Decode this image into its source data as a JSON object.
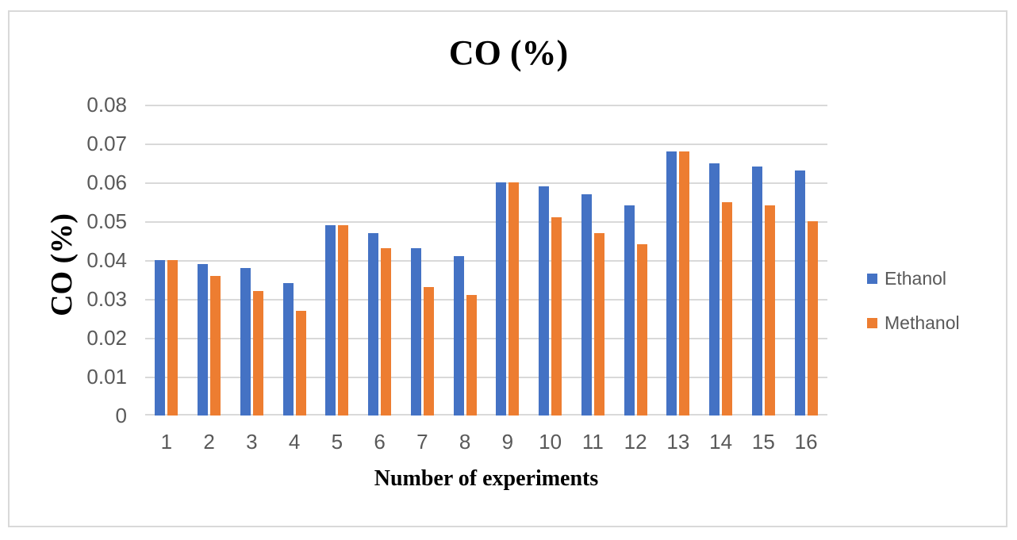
{
  "chart_data": {
    "type": "bar",
    "title": "CO (%)",
    "xlabel": "Number of experiments",
    "ylabel": "CO (%)",
    "categories": [
      "1",
      "2",
      "3",
      "4",
      "5",
      "6",
      "7",
      "8",
      "9",
      "10",
      "11",
      "12",
      "13",
      "14",
      "15",
      "16"
    ],
    "series": [
      {
        "name": "Ethanol",
        "color": "#4472C4",
        "values": [
          0.04,
          0.039,
          0.038,
          0.034,
          0.049,
          0.047,
          0.043,
          0.041,
          0.06,
          0.059,
          0.057,
          0.054,
          0.068,
          0.065,
          0.064,
          0.063
        ]
      },
      {
        "name": "Methanol",
        "color": "#ED7D31",
        "values": [
          0.04,
          0.036,
          0.032,
          0.027,
          0.049,
          0.043,
          0.033,
          0.031,
          0.06,
          0.051,
          0.047,
          0.044,
          0.068,
          0.055,
          0.054,
          0.05
        ]
      }
    ],
    "ylim": [
      0,
      0.08
    ],
    "ytick_step": 0.01,
    "ytick_labels": [
      "0",
      "0.01",
      "0.02",
      "0.03",
      "0.04",
      "0.05",
      "0.06",
      "0.07",
      "0.08"
    ],
    "grid": true,
    "legend_position": "right",
    "colors": {
      "gridline": "#D9D9D9",
      "frame_border": "#D9D9D9",
      "tick_label": "#595959",
      "legend_label": "#595959",
      "title_text": "#000000"
    }
  }
}
